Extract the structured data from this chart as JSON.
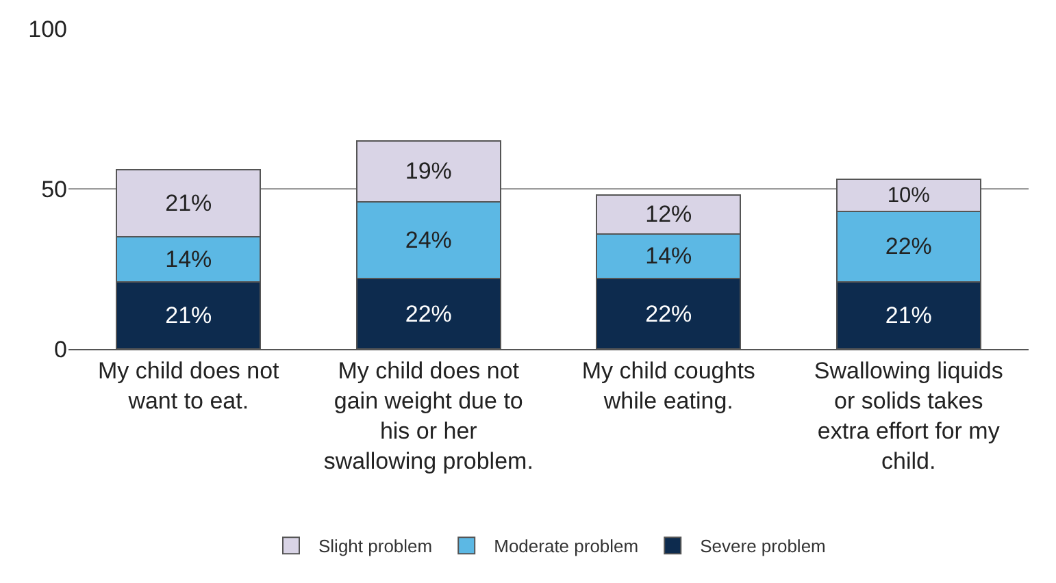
{
  "chart_data": {
    "type": "bar",
    "stacked": true,
    "categories": [
      "My child does not want to eat.",
      "My child does not gain weight due to his or her swallowing problem.",
      "My child coughts while eating.",
      "Swallowing liquids or solids takes extra effort for my child."
    ],
    "series": [
      {
        "name": "Severe problem",
        "color": "#0d2b4e",
        "values": [
          21,
          22,
          22,
          21
        ],
        "value_labels": [
          "21%",
          "22%",
          "22%",
          "21%"
        ]
      },
      {
        "name": "Moderate problem",
        "color": "#5cb8e4",
        "values": [
          14,
          24,
          14,
          22
        ],
        "value_labels": [
          "14%",
          "24%",
          "14%",
          "22%"
        ]
      },
      {
        "name": "Slight problem",
        "color": "#d9d4e6",
        "values": [
          21,
          19,
          12,
          10
        ],
        "value_labels": [
          "21%",
          "19%",
          "12%",
          "10%"
        ]
      }
    ],
    "ylim": [
      0,
      100
    ],
    "yticks": [
      0,
      50,
      100
    ],
    "grid": "y",
    "legend": "bottom"
  }
}
